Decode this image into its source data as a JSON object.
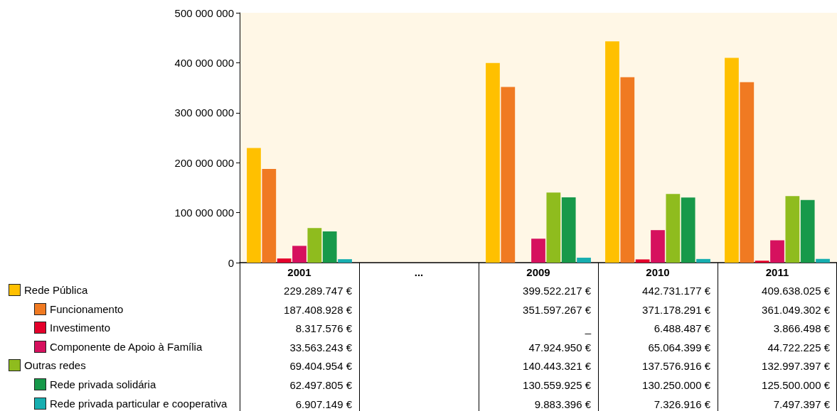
{
  "chart_data": {
    "type": "bar",
    "categories": [
      "2001",
      "...",
      "2009",
      "2010",
      "2011"
    ],
    "ylim": [
      0,
      500000000
    ],
    "yticks": [
      0,
      {
        "value": 100000000,
        "label": "100 000 000"
      },
      {
        "value": 200000000,
        "label": "200 000 000"
      },
      {
        "value": 300000000,
        "label": "300 000 000"
      },
      {
        "value": 400000000,
        "label": "400 000 000"
      },
      {
        "value": 500000000,
        "label": "500 000 000"
      }
    ],
    "legend": "bottom left",
    "series": [
      {
        "name": "Rede Pública",
        "color": "#ffc000",
        "values": [
          229289747,
          null,
          399522217,
          442731177,
          409638025
        ],
        "value_labels": [
          "229.289.747 €",
          null,
          "399.522.217 €",
          "442.731.177 €",
          "409.638.025 €"
        ]
      },
      {
        "name": "Funcionamento",
        "color": "#f07a22",
        "values": [
          187408928,
          null,
          351597267,
          371178291,
          361049302
        ],
        "value_labels": [
          "187.408.928 €",
          null,
          "351.597.267 €",
          "371.178.291 €",
          "361.049.302 €"
        ]
      },
      {
        "name": "Investimento",
        "color": "#e4002b",
        "values": [
          8317576,
          null,
          null,
          6488487,
          3866498
        ],
        "value_labels": [
          "8.317.576 €",
          null,
          "_",
          "6.488.487 €",
          "3.866.498 €"
        ]
      },
      {
        "name": "Componente de Apoio à Família",
        "color": "#d6115e",
        "values": [
          33563243,
          null,
          47924950,
          65064399,
          44722225
        ],
        "value_labels": [
          "33.563.243 €",
          null,
          "47.924.950 €",
          "65.064.399 €",
          "44.722.225 €"
        ]
      },
      {
        "name": "Outras redes",
        "color": "#8fbc1e",
        "values": [
          69404954,
          null,
          140443321,
          137576916,
          132997397
        ],
        "value_labels": [
          "69.404.954 €",
          null,
          "140.443.321 €",
          "137.576.916 €",
          "132.997.397 €"
        ]
      },
      {
        "name": "Rede privada solidária",
        "color": "#17994a",
        "values": [
          62497805,
          null,
          130559925,
          130250000,
          125500000
        ],
        "value_labels": [
          "62.497.805 €",
          null,
          "130.559.925 €",
          "130.250.000 €",
          "125.500.000 €"
        ]
      },
      {
        "name": "Rede privada particular e cooperativa",
        "color": "#17aeb0",
        "values": [
          6907149,
          null,
          9883396,
          7326916,
          7497397
        ],
        "value_labels": [
          "6.907.149 €",
          null,
          "9.883.396 €",
          "7.326.916 €",
          "7.497.397 €"
        ]
      }
    ]
  }
}
